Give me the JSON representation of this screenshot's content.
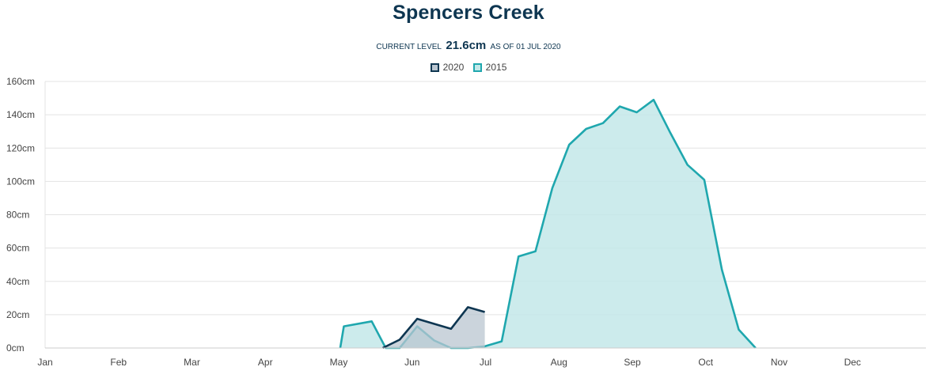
{
  "header": {
    "title": "Spencers Creek",
    "current_label": "CURRENT LEVEL",
    "current_value": "21.6cm",
    "as_of": "AS OF 01 JUL 2020"
  },
  "colors": {
    "series_2020": "#0e3651",
    "series_2020_fill": "#b9c5d0",
    "series_2015": "#1fa7ae",
    "series_2015_fill": "#c3e8e9",
    "grid": "#e3e3e3",
    "axis": "#cccccc"
  },
  "chart_data": {
    "type": "area",
    "title": "Spencers Creek",
    "xlabel": "",
    "ylabel": "",
    "x_categories": [
      "Jan",
      "Feb",
      "Mar",
      "Apr",
      "May",
      "Jun",
      "Jul",
      "Aug",
      "Sep",
      "Oct",
      "Nov",
      "Dec"
    ],
    "y_ticks": [
      "0cm",
      "20cm",
      "40cm",
      "60cm",
      "80cm",
      "100cm",
      "120cm",
      "140cm",
      "160cm"
    ],
    "ylim": [
      0,
      160
    ],
    "x_unit": "month index (0 = 1 Jan)",
    "grid": true,
    "legend_position": "top-center",
    "series": [
      {
        "name": "2020",
        "points": [
          [
            4.6,
            0
          ],
          [
            4.83,
            5
          ],
          [
            5.07,
            17.5
          ],
          [
            5.53,
            11.5
          ],
          [
            5.76,
            24.5
          ],
          [
            5.99,
            21.6
          ]
        ]
      },
      {
        "name": "2015",
        "points": [
          [
            4.02,
            0
          ],
          [
            4.07,
            13
          ],
          [
            4.45,
            16
          ],
          [
            4.64,
            0
          ],
          [
            4.83,
            0
          ],
          [
            5.07,
            13
          ],
          [
            5.3,
            4.5
          ],
          [
            5.53,
            0
          ],
          [
            5.76,
            0
          ],
          [
            5.99,
            1
          ],
          [
            6.22,
            4
          ],
          [
            6.45,
            55
          ],
          [
            6.68,
            58
          ],
          [
            6.91,
            96
          ],
          [
            7.14,
            122
          ],
          [
            7.37,
            131.5
          ],
          [
            7.6,
            135
          ],
          [
            7.83,
            145
          ],
          [
            8.06,
            141.5
          ],
          [
            8.29,
            149
          ],
          [
            8.52,
            129
          ],
          [
            8.75,
            110
          ],
          [
            8.98,
            101
          ],
          [
            9.22,
            47
          ],
          [
            9.45,
            11
          ],
          [
            9.68,
            0
          ]
        ]
      }
    ]
  }
}
